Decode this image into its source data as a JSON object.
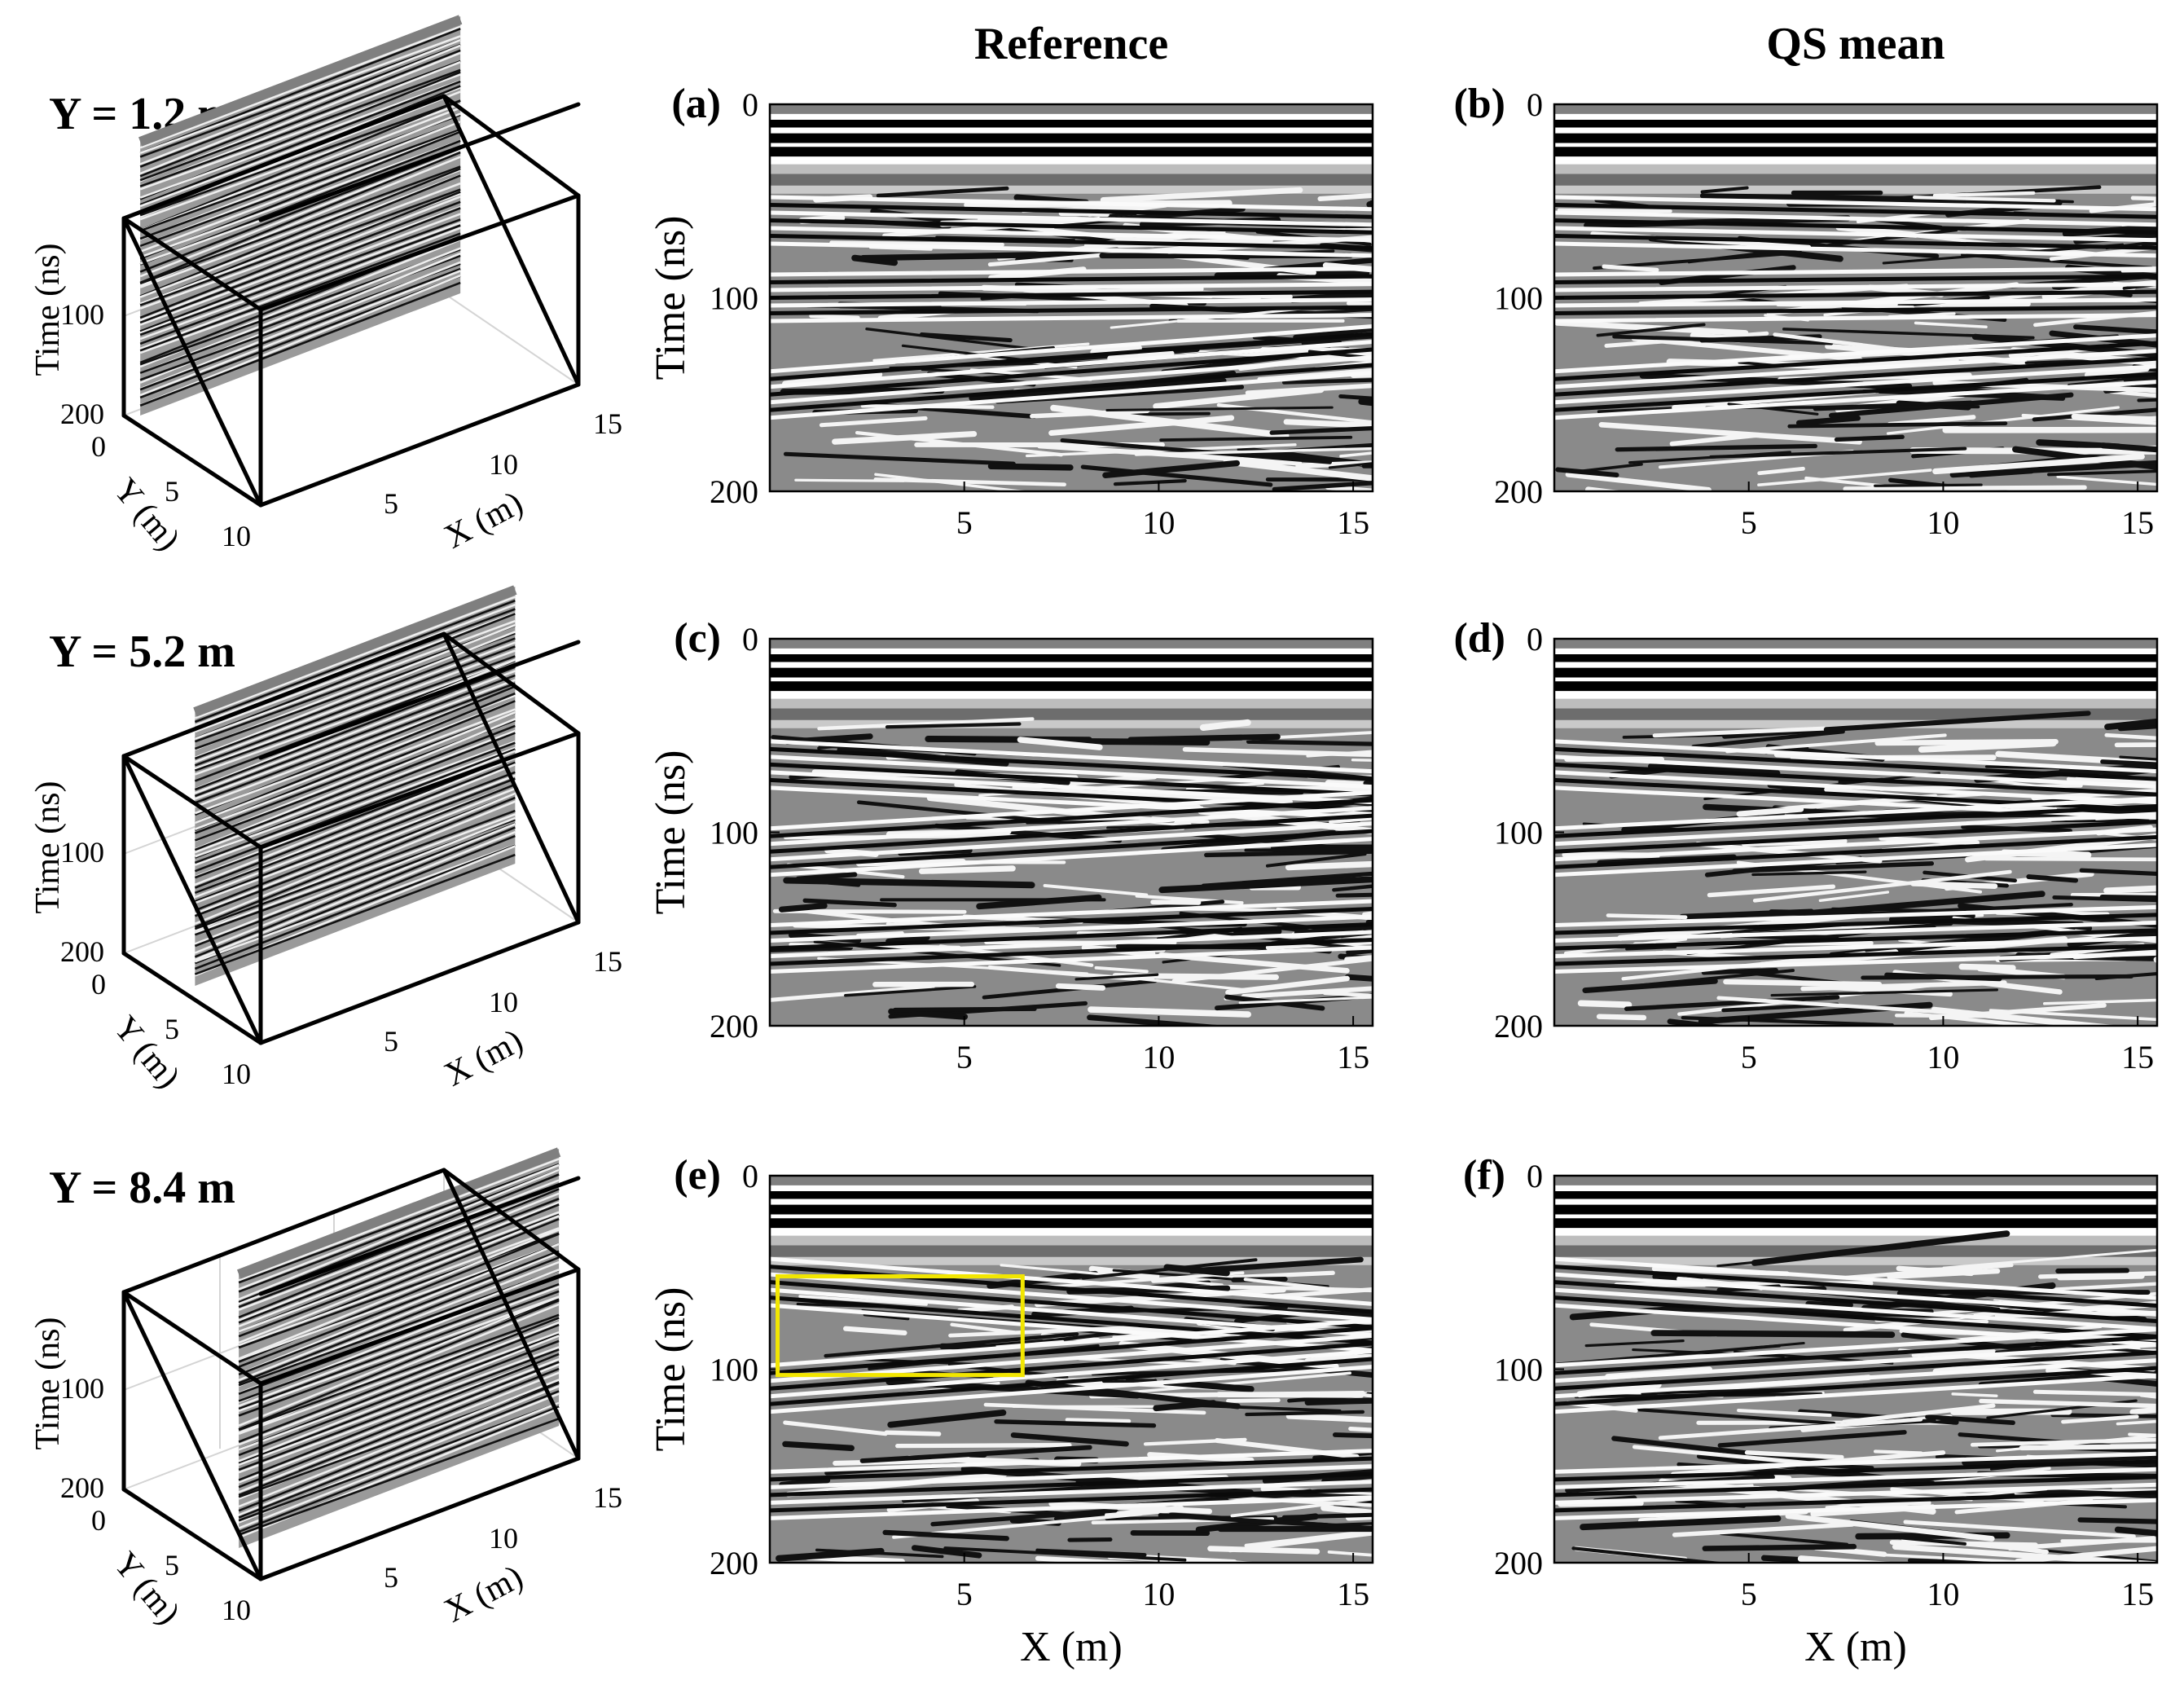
{
  "column_titles": [
    "Reference",
    "QS mean"
  ],
  "row_labels": [
    "Y = 1.2 m",
    "Y = 5.2 m",
    "Y = 8.4 m"
  ],
  "chart_data": [
    {
      "type": "heatmap",
      "panel": "(a)",
      "column": "Reference",
      "row": "Y = 1.2 m",
      "xlabel": "",
      "ylabel": "Time (ns)",
      "xticks": [
        5,
        10,
        15
      ],
      "yticks": [
        0,
        100,
        200
      ],
      "xlim": [
        0,
        15.5
      ],
      "ylim": [
        200,
        0
      ],
      "top_bands_ns": [
        0,
        12,
        20,
        27
      ],
      "layers": [
        {
          "t0": 60,
          "slope": 0.4
        },
        {
          "t0": 100,
          "slope": -0.2
        },
        {
          "t0": 150,
          "slope": -1.5
        }
      ]
    },
    {
      "type": "heatmap",
      "panel": "(b)",
      "column": "QS mean",
      "row": "Y = 1.2 m",
      "xlabel": "",
      "ylabel": "",
      "xticks": [
        5,
        10,
        15
      ],
      "yticks": [
        0,
        100,
        200
      ],
      "xlim": [
        0,
        15.5
      ],
      "ylim": [
        200,
        0
      ],
      "top_bands_ns": [
        0,
        12,
        20,
        27
      ],
      "layers": [
        {
          "t0": 60,
          "slope": 0.4
        },
        {
          "t0": 100,
          "slope": -0.2
        },
        {
          "t0": 150,
          "slope": -1.2
        }
      ]
    },
    {
      "type": "heatmap",
      "panel": "(c)",
      "column": "Reference",
      "row": "Y = 5.2 m",
      "xlabel": "",
      "ylabel": "Time (ns)",
      "xticks": [
        5,
        10,
        15
      ],
      "yticks": [
        0,
        100,
        200
      ],
      "xlim": [
        0,
        15.5
      ],
      "ylim": [
        200,
        0
      ],
      "top_bands_ns": [
        0,
        12,
        20,
        27
      ],
      "layers": [
        {
          "t0": 65,
          "slope": 1.0
        },
        {
          "t0": 110,
          "slope": -1.2
        },
        {
          "t0": 160,
          "slope": -0.8
        }
      ]
    },
    {
      "type": "heatmap",
      "panel": "(d)",
      "column": "QS mean",
      "row": "Y = 5.2 m",
      "xlabel": "",
      "ylabel": "",
      "xticks": [
        5,
        10,
        15
      ],
      "yticks": [
        0,
        100,
        200
      ],
      "xlim": [
        0,
        15.5
      ],
      "ylim": [
        200,
        0
      ],
      "top_bands_ns": [
        0,
        12,
        20,
        27
      ],
      "layers": [
        {
          "t0": 65,
          "slope": 1.0
        },
        {
          "t0": 110,
          "slope": -1.0
        },
        {
          "t0": 160,
          "slope": -0.6
        }
      ]
    },
    {
      "type": "heatmap",
      "panel": "(e)",
      "column": "Reference",
      "row": "Y = 8.4 m",
      "xlabel": "X (m)",
      "ylabel": "Time (ns)",
      "xticks": [
        5,
        10,
        15
      ],
      "yticks": [
        0,
        100,
        200
      ],
      "xlim": [
        0,
        15.5
      ],
      "ylim": [
        200,
        0
      ],
      "top_bands_ns": [
        0,
        12,
        20,
        27
      ],
      "layers": [
        {
          "t0": 55,
          "slope": 1.5
        },
        {
          "t0": 110,
          "slope": -1.5
        },
        {
          "t0": 165,
          "slope": -0.7
        }
      ],
      "highlight_box": {
        "x": [
          0.2,
          6.5
        ],
        "y": [
          52,
          103
        ],
        "color": "#f2e600"
      }
    },
    {
      "type": "heatmap",
      "panel": "(f)",
      "column": "QS mean",
      "row": "Y = 8.4 m",
      "xlabel": "X (m)",
      "ylabel": "",
      "xticks": [
        5,
        10,
        15
      ],
      "yticks": [
        0,
        100,
        200
      ],
      "xlim": [
        0,
        15.5
      ],
      "ylim": [
        200,
        0
      ],
      "top_bands_ns": [
        0,
        12,
        20,
        27
      ],
      "layers": [
        {
          "t0": 55,
          "slope": 1.3
        },
        {
          "t0": 110,
          "slope": -1.2
        },
        {
          "t0": 165,
          "slope": -0.6
        }
      ]
    }
  ],
  "cubes": [
    {
      "slice_y_m": 1.2,
      "xlabel": "X (m)",
      "ylabel": "Y (m)",
      "zlabel": "Time (ns)",
      "xticks": [
        5,
        10,
        15
      ],
      "yticks": [
        0,
        5,
        10
      ],
      "zticks": [
        100,
        200
      ]
    },
    {
      "slice_y_m": 5.2,
      "xlabel": "X (m)",
      "ylabel": "Y (m)",
      "zlabel": "Time (ns)",
      "xticks": [
        5,
        10,
        15
      ],
      "yticks": [
        0,
        5,
        10
      ],
      "zticks": [
        100,
        200
      ]
    },
    {
      "slice_y_m": 8.4,
      "xlabel": "X (m)",
      "ylabel": "Y (m)",
      "zlabel": "Time (ns)",
      "xticks": [
        5,
        10,
        15
      ],
      "yticks": [
        0,
        5,
        10
      ],
      "zticks": [
        100,
        200
      ]
    }
  ],
  "colors": {
    "box_highlight": "#f2e600",
    "band_gray": "#7f7f7f"
  }
}
